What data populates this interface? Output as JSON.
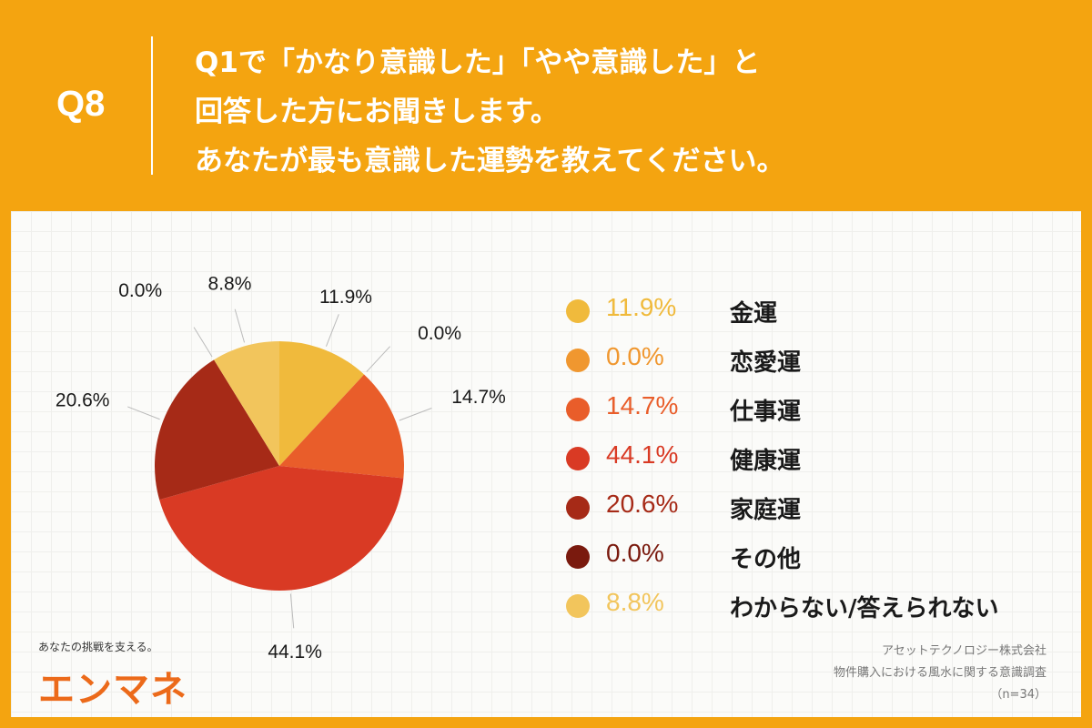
{
  "header": {
    "q_number": "Q8",
    "lines": [
      "Q1で「かなり意識した」「やや意識した」と",
      "回答した方にお聞きします。",
      "あなたが最も意識した運勢を教えてください。"
    ]
  },
  "chart_data": {
    "type": "pie",
    "categories": [
      "金運",
      "恋愛運",
      "仕事運",
      "健康運",
      "家庭運",
      "その他",
      "わからない/答えられない"
    ],
    "values": [
      11.9,
      0.0,
      14.7,
      44.1,
      20.6,
      0.0,
      8.8
    ],
    "value_labels": [
      "11.9%",
      "0.0%",
      "14.7%",
      "44.1%",
      "20.6%",
      "0.0%",
      "8.8%"
    ],
    "colors": [
      "#F0BA3C",
      "#F0972F",
      "#E95D2A",
      "#D93A24",
      "#A62A17",
      "#7A1A0E",
      "#F2C55C"
    ],
    "legend_placement": "right"
  },
  "brand": {
    "tagline": "あなたの挑戦を支える。",
    "logo_text": "エンマネ"
  },
  "source": {
    "company": "アセットテクノロジー株式会社",
    "survey": "物件購入における風水に関する意識調査",
    "sample": "（n=34）"
  }
}
